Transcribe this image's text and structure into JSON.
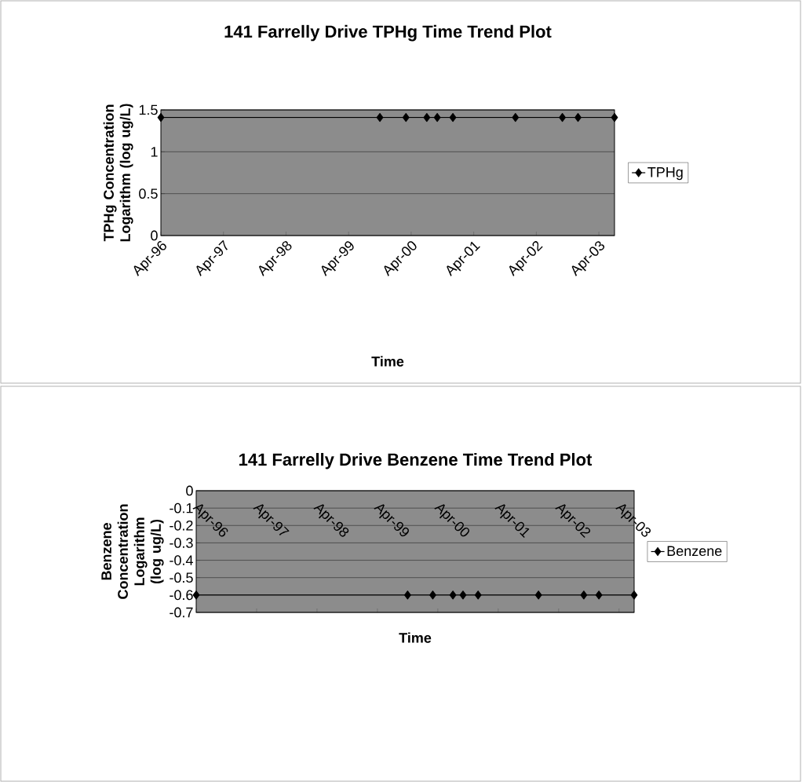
{
  "chart_data": [
    {
      "type": "line",
      "title": "141 Farrelly Drive TPHg Time Trend Plot",
      "xlabel": "Time",
      "ylabel": "TPHg Concentration Logarithm (log ug/L)",
      "x": [
        "1996-04",
        "1999-10",
        "2000-03",
        "2000-07",
        "2000-09",
        "2000-12",
        "2001-12",
        "2002-09",
        "2002-12",
        "2003-07"
      ],
      "series": [
        {
          "name": "TPHg",
          "color": "#000000",
          "values": [
            1.41,
            1.41,
            1.41,
            1.41,
            1.41,
            1.41,
            1.41,
            1.41,
            1.41,
            1.41
          ]
        }
      ],
      "xlim": [
        "1996-04",
        "2003-07"
      ],
      "xticks": [
        {
          "value": "1996-04",
          "label": "Apr-96"
        },
        {
          "value": "1997-04",
          "label": "Apr-97"
        },
        {
          "value": "1998-04",
          "label": "Apr-98"
        },
        {
          "value": "1999-04",
          "label": "Apr-99"
        },
        {
          "value": "2000-04",
          "label": "Apr-00"
        },
        {
          "value": "2001-04",
          "label": "Apr-01"
        },
        {
          "value": "2002-04",
          "label": "Apr-02"
        },
        {
          "value": "2003-04",
          "label": "Apr-03"
        }
      ],
      "ylim": [
        0,
        1.5
      ],
      "yticks": [
        0,
        0.5,
        1,
        1.5
      ],
      "grid": "y",
      "legend": "right",
      "marker": "diamond"
    },
    {
      "type": "line",
      "title": "141 Farrelly Drive Benzene Time Trend Plot",
      "xlabel": "Time",
      "ylabel": "Benzene Concentration Logarithm (log ug/L)",
      "x": [
        "1996-04",
        "1999-10",
        "2000-03",
        "2000-07",
        "2000-09",
        "2000-12",
        "2001-12",
        "2002-09",
        "2002-12",
        "2003-07"
      ],
      "series": [
        {
          "name": "Benzene",
          "color": "#000000",
          "values": [
            -0.6,
            -0.6,
            -0.6,
            -0.6,
            -0.6,
            -0.6,
            -0.6,
            -0.6,
            -0.6,
            -0.6
          ]
        }
      ],
      "xlim": [
        "1996-04",
        "2003-07"
      ],
      "xticks": [
        {
          "value": "1996-04",
          "label": "Apr-96"
        },
        {
          "value": "1997-04",
          "label": "Apr-97"
        },
        {
          "value": "1998-04",
          "label": "Apr-98"
        },
        {
          "value": "1999-04",
          "label": "Apr-99"
        },
        {
          "value": "2000-04",
          "label": "Apr-00"
        },
        {
          "value": "2001-04",
          "label": "Apr-01"
        },
        {
          "value": "2002-04",
          "label": "Apr-02"
        },
        {
          "value": "2003-04",
          "label": "Apr-03"
        }
      ],
      "ylim": [
        -0.7,
        0
      ],
      "yticks": [
        -0.7,
        -0.6,
        -0.5,
        -0.4,
        -0.3,
        -0.2,
        -0.1,
        0
      ],
      "grid": "y",
      "legend": "right",
      "marker": "diamond"
    }
  ]
}
